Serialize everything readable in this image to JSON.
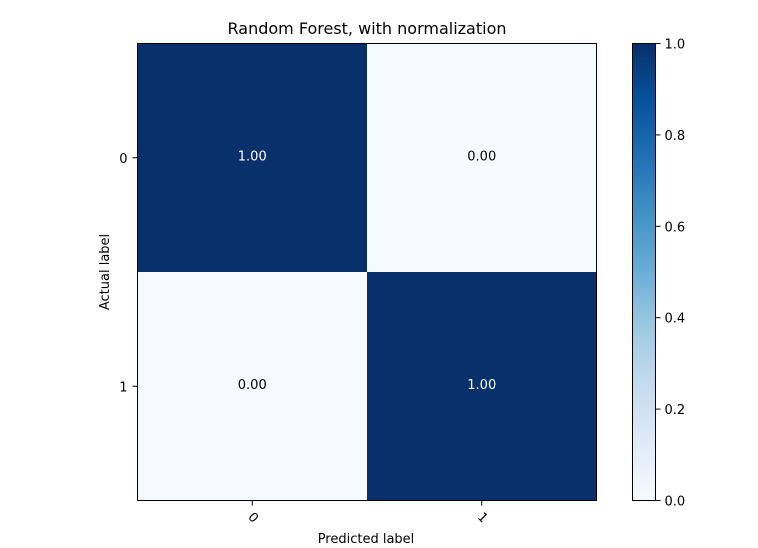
{
  "chart_data": {
    "type": "heatmap",
    "title": "Random Forest, with normalization",
    "xlabel": "Predicted label",
    "ylabel": "Actual label",
    "x_categories": [
      "0",
      "1"
    ],
    "y_categories": [
      "0",
      "1"
    ],
    "values": [
      [
        1.0,
        0.0
      ],
      [
        0.0,
        1.0
      ]
    ],
    "cell_labels": [
      [
        "1.00",
        "0.00"
      ],
      [
        "0.00",
        "1.00"
      ]
    ],
    "colormap": "Blues",
    "color_low": "#f7fbff",
    "color_high": "#08306b",
    "colorbar": {
      "range": [
        0.0,
        1.0
      ],
      "ticks": [
        "0.0",
        "0.2",
        "0.4",
        "0.6",
        "0.8",
        "1.0"
      ]
    },
    "grid": false
  }
}
